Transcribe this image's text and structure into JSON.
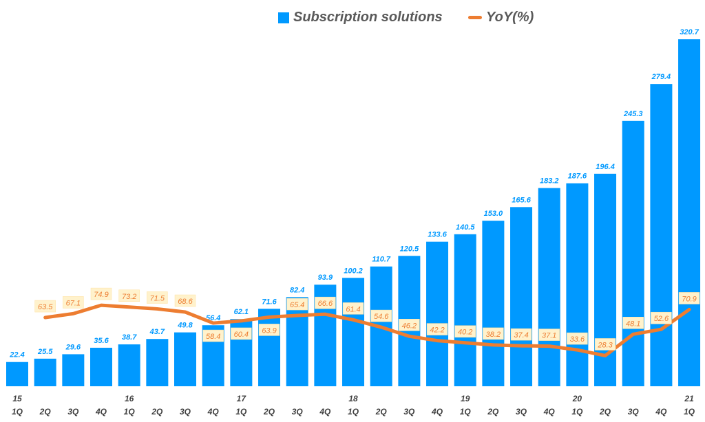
{
  "chart_data": {
    "type": "bar+line",
    "title": "",
    "legend_position": "top",
    "grid": false,
    "categories": [
      {
        "year": "15",
        "quarter": "1Q"
      },
      {
        "year": "",
        "quarter": "2Q"
      },
      {
        "year": "",
        "quarter": "3Q"
      },
      {
        "year": "",
        "quarter": "4Q"
      },
      {
        "year": "16",
        "quarter": "1Q"
      },
      {
        "year": "",
        "quarter": "2Q"
      },
      {
        "year": "",
        "quarter": "3Q"
      },
      {
        "year": "",
        "quarter": "4Q"
      },
      {
        "year": "17",
        "quarter": "1Q"
      },
      {
        "year": "",
        "quarter": "2Q"
      },
      {
        "year": "",
        "quarter": "3Q"
      },
      {
        "year": "",
        "quarter": "4Q"
      },
      {
        "year": "18",
        "quarter": "1Q"
      },
      {
        "year": "",
        "quarter": "2Q"
      },
      {
        "year": "",
        "quarter": "3Q"
      },
      {
        "year": "",
        "quarter": "4Q"
      },
      {
        "year": "19",
        "quarter": "1Q"
      },
      {
        "year": "",
        "quarter": "2Q"
      },
      {
        "year": "",
        "quarter": "3Q"
      },
      {
        "year": "",
        "quarter": "4Q"
      },
      {
        "year": "20",
        "quarter": "1Q"
      },
      {
        "year": "",
        "quarter": "2Q"
      },
      {
        "year": "",
        "quarter": "3Q"
      },
      {
        "year": "",
        "quarter": "4Q"
      },
      {
        "year": "21",
        "quarter": "1Q"
      }
    ],
    "ylim": [
      0,
      357
    ],
    "series": [
      {
        "name": "Subscription solutions",
        "type": "bar",
        "color": "#0099FF",
        "values": [
          22.4,
          25.5,
          29.6,
          35.6,
          38.7,
          43.7,
          49.8,
          56.4,
          62.1,
          71.6,
          82.4,
          93.9,
          100.2,
          110.7,
          120.5,
          133.6,
          140.5,
          153.0,
          165.6,
          183.2,
          187.6,
          196.4,
          245.3,
          279.4,
          320.7
        ]
      },
      {
        "name": "YoY(%)",
        "type": "line",
        "color": "#ED7D31",
        "values": [
          null,
          63.5,
          67.1,
          74.9,
          73.2,
          71.5,
          68.6,
          58.4,
          60.4,
          63.9,
          65.4,
          66.6,
          61.4,
          54.6,
          46.2,
          42.2,
          40.2,
          38.2,
          37.4,
          37.1,
          33.6,
          28.3,
          48.1,
          52.6,
          70.9
        ]
      }
    ]
  }
}
